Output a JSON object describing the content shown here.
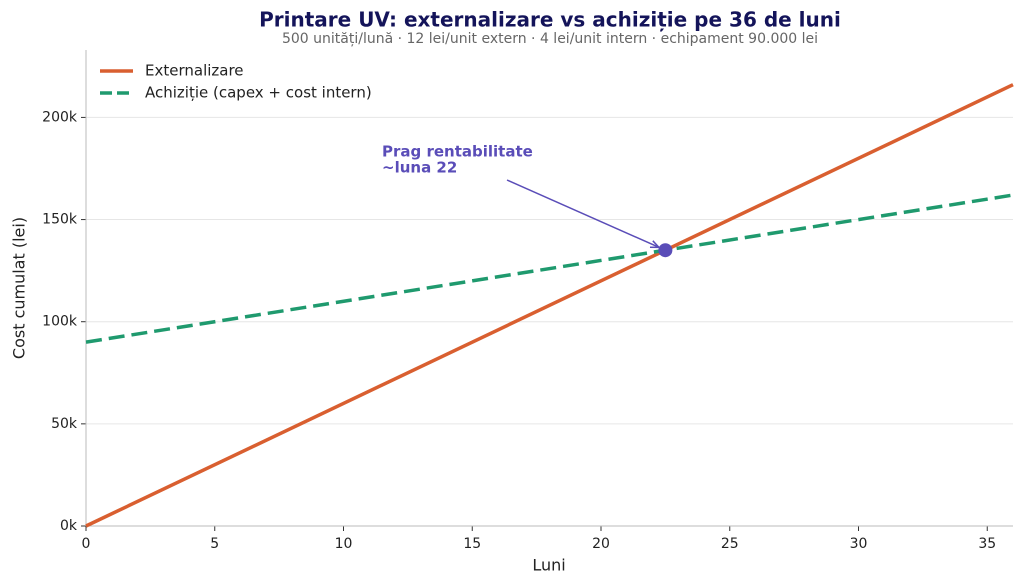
{
  "chart_data": {
    "type": "line",
    "title": "Printare UV: externalizare vs achiziție pe 36 de luni",
    "subtitle": "500 unități/lună · 12 lei/unit extern · 4 lei/unit intern · echipament 90.000 lei",
    "x_label": "Luni",
    "y_label": "Cost cumulat (lei)",
    "x": [
      0,
      36
    ],
    "series": [
      {
        "name": "Externalizare",
        "color": "#d95f30",
        "dash": false,
        "values": [
          0,
          216000
        ]
      },
      {
        "name": "Achiziție (capex + cost intern)",
        "color": "#1f9a6e",
        "dash": true,
        "values": [
          90000,
          162000
        ]
      }
    ],
    "xlim": [
      0,
      36
    ],
    "xticks": [
      0,
      5,
      10,
      15,
      20,
      25,
      30,
      35
    ],
    "ylim": [
      0,
      233000
    ],
    "yticks": [
      {
        "value": 0,
        "label": "0k"
      },
      {
        "value": 50000,
        "label": "50k"
      },
      {
        "value": 100000,
        "label": "100k"
      },
      {
        "value": 150000,
        "label": "150k"
      },
      {
        "value": 200000,
        "label": "200k"
      }
    ],
    "grid": true,
    "legend": "upper-left",
    "annotation": {
      "lines": [
        "Prag rentabilitate",
        "~luna 22"
      ],
      "color": "#5a4db8",
      "point": [
        22.5,
        135000
      ]
    }
  }
}
